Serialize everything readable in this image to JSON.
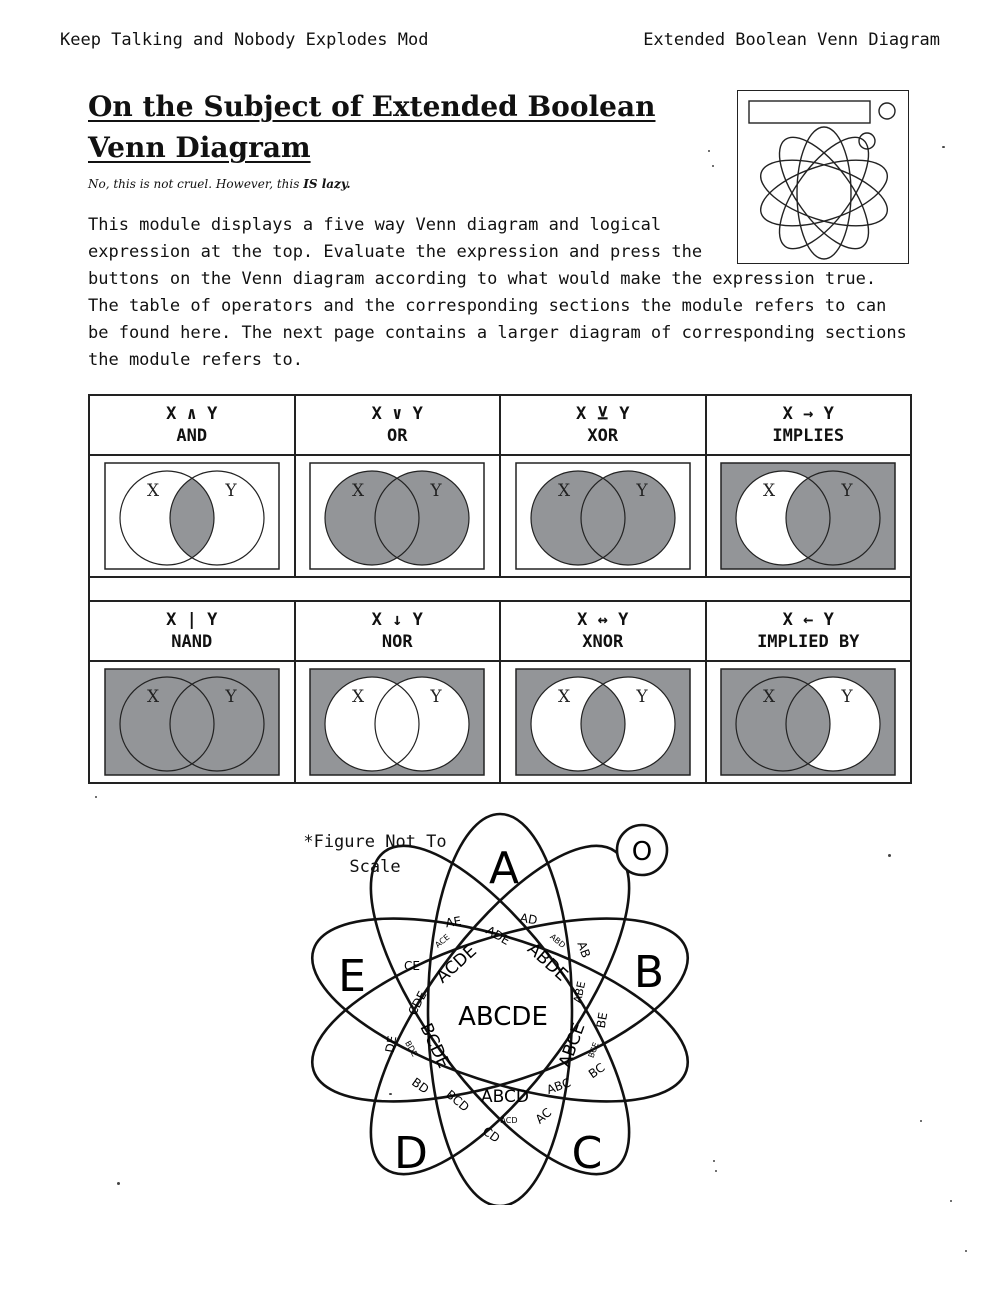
{
  "header": {
    "left": "Keep Talking and Nobody Explodes Mod",
    "right": "Extended Boolean Venn Diagram"
  },
  "title": "On the Subject of Extended Boolean Venn Diagram",
  "subtitle_prefix": "No, this is not cruel. However, this ",
  "subtitle_emph": "IS lazy.",
  "intro": "This module displays a five way Venn diagram and logical expression at the top. Evaluate the expression and press the buttons on the Venn diagram according to what would make the expression true. The table of operators and the corresponding sections the module refers to can be found here. The next page contains a larger diagram of corresponding sections the module refers to.",
  "colors": {
    "shade": "#939598",
    "line": "#222222"
  },
  "operators": [
    {
      "symbol": "X ∧ Y",
      "name": "AND",
      "regions": {
        "outside": false,
        "x_only": false,
        "both": true,
        "y_only": false
      }
    },
    {
      "symbol": "X ∨ Y",
      "name": "OR",
      "regions": {
        "outside": false,
        "x_only": true,
        "both": true,
        "y_only": true
      }
    },
    {
      "symbol": "X ⊻ Y",
      "name": "XOR",
      "regions": {
        "outside": false,
        "x_only": true,
        "both": false,
        "y_only": true
      }
    },
    {
      "symbol": "X → Y",
      "name": "IMPLIES",
      "regions": {
        "outside": true,
        "x_only": false,
        "both": true,
        "y_only": true
      }
    },
    {
      "symbol": "X | Y",
      "name": "NAND",
      "regions": {
        "outside": true,
        "x_only": true,
        "both": false,
        "y_only": true
      }
    },
    {
      "symbol": "X ↓ Y",
      "name": "NOR",
      "regions": {
        "outside": true,
        "x_only": false,
        "both": false,
        "y_only": false
      }
    },
    {
      "symbol": "X ↔ Y",
      "name": "XNOR",
      "regions": {
        "outside": true,
        "x_only": false,
        "both": true,
        "y_only": false
      }
    },
    {
      "symbol": "X ← Y",
      "name": "IMPLIED BY",
      "regions": {
        "outside": true,
        "x_only": true,
        "both": true,
        "y_only": false
      }
    }
  ],
  "venn_xy": {
    "x_label": "X",
    "y_label": "Y"
  },
  "figure_note": "*Figure Not To Scale",
  "big_venn": {
    "sets": [
      "A",
      "B",
      "C",
      "D",
      "E"
    ],
    "outside_label": "O",
    "center_label": "ABCDE",
    "labels": [
      "AE",
      "AD",
      "ACE",
      "ADE",
      "ABD",
      "AB",
      "CE",
      "ACDE",
      "ABDE",
      "ABE",
      "BE",
      "CDE",
      "ABCE",
      "BCE",
      "DE",
      "BDE",
      "BCDE",
      "BC",
      "BD",
      "BCD",
      "ABCD",
      "ABC",
      "ACD",
      "AC",
      "CD"
    ]
  }
}
